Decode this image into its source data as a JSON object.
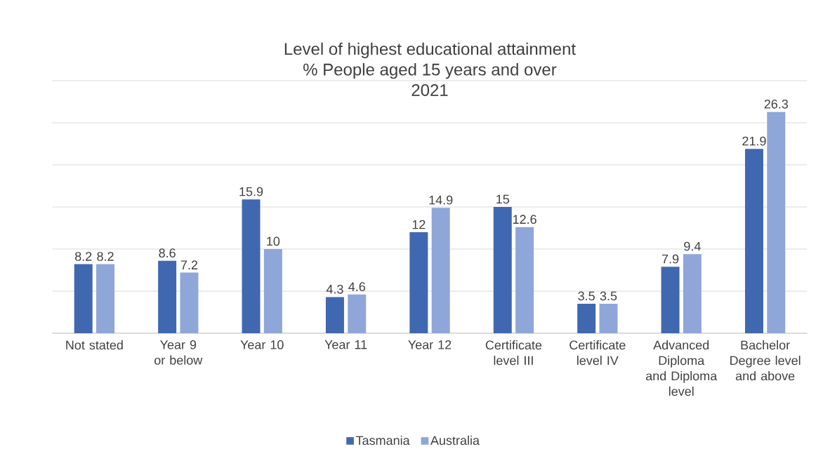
{
  "chart_data": {
    "type": "bar",
    "title": "Level of highest educational attainment",
    "subtitle": "% People aged 15 years and over",
    "annotations": [
      "2021"
    ],
    "categories": [
      "Not stated",
      "Year 9 or below",
      "Year 10",
      "Year 11",
      "Year 12",
      "Certificate level III",
      "Certificate level IV",
      "Advanced Diploma and Diploma level",
      "Bachelor Degree level and above"
    ],
    "series": [
      {
        "name": "Tasmania",
        "color": "#4068b0",
        "values": [
          8.2,
          8.6,
          15.9,
          4.3,
          12,
          15,
          3.5,
          7.9,
          21.9
        ]
      },
      {
        "name": "Australia",
        "color": "#8fa6d8",
        "values": [
          8.2,
          7.2,
          10,
          4.6,
          14.9,
          12.6,
          3.5,
          9.4,
          26.3
        ]
      }
    ],
    "ylim": [
      0,
      30
    ],
    "tick_labels": "x",
    "grid": "y",
    "legend": "bottom",
    "data_labels": true
  }
}
